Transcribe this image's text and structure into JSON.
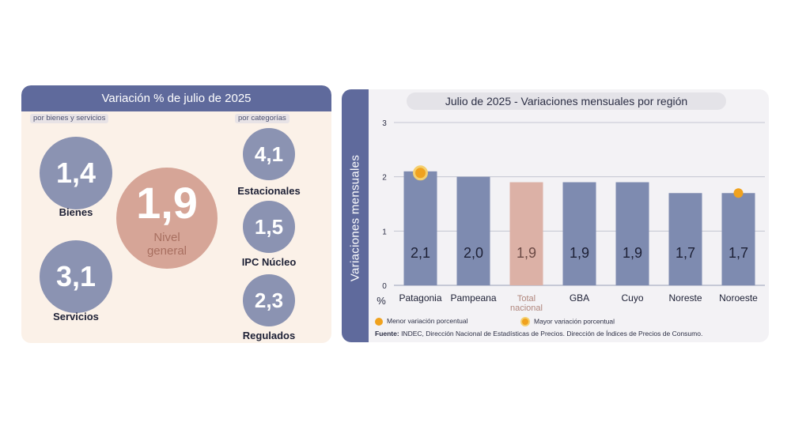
{
  "left_panel": {
    "title": "Variación % de julio de 2025",
    "group_left_label": "por bienes y servicios",
    "group_right_label": "por categorías",
    "nivel_general": {
      "value": "1,9",
      "label_line1": "Nivel",
      "label_line2": "general"
    },
    "bubbles": [
      {
        "id": "bienes",
        "value": "1,4",
        "label": "Bienes"
      },
      {
        "id": "servicios",
        "value": "3,1",
        "label": "Servicios"
      },
      {
        "id": "estacionales",
        "value": "4,1",
        "label": "Estacionales"
      },
      {
        "id": "ipc-nucleo",
        "value": "1,5",
        "label": "IPC Núcleo"
      },
      {
        "id": "regulados",
        "value": "2,3",
        "label": "Regulados"
      }
    ]
  },
  "right_panel": {
    "source_bold": "Fuente:",
    "source_text": " INDEC, Dirección Nacional de Estadísticas de Precios. Dirección de Índices de Precios de Consumo.",
    "legend": [
      {
        "label": "Menor variación porcentual",
        "marker": "dot"
      },
      {
        "label": "Mayor variación porcentual",
        "marker": "ring-dot"
      }
    ]
  },
  "chart_data": {
    "type": "bar",
    "title": "Julio de 2025 - Variaciones mensuales por región",
    "ylabel": "Variaciones   mensuales",
    "yunit": "%",
    "ylim": [
      0,
      3
    ],
    "yticks": [
      "0",
      "1",
      "2",
      "3"
    ],
    "grid": true,
    "categories": [
      "Patagonia",
      "Pampeana",
      "Total\nnacional",
      "GBA",
      "Cuyo",
      "Noreste",
      "Noroeste"
    ],
    "values": [
      2.1,
      2.0,
      1.9,
      1.9,
      1.9,
      1.7,
      1.7
    ],
    "value_labels": [
      "2,1",
      "2,0",
      "1,9",
      "1,9",
      "1,9",
      "1,7",
      "1,7"
    ],
    "highlight_category": "Total\nnacional",
    "max_marker_category": "Patagonia",
    "min_marker_category": "Noroeste",
    "colors": {
      "bar": "#7e8bb0",
      "bar_highlight": "#dcb1a6",
      "marker": "#f0a21e",
      "marker_ring": "#f4cf6e",
      "header": "#5f6a9c"
    }
  }
}
